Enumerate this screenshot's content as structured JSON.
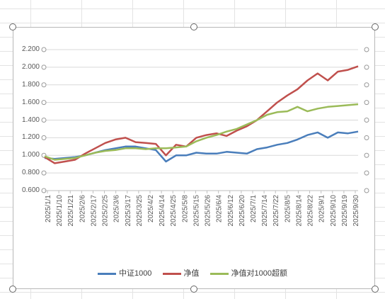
{
  "chart_data": {
    "type": "line",
    "y_ticks": [
      "2.200",
      "2.000",
      "1.800",
      "1.600",
      "1.400",
      "1.200",
      "1.000",
      "0.800",
      "0.600"
    ],
    "ylim": [
      0.6,
      2.2
    ],
    "x_tick_labels": [
      "2025/1/1",
      "2025/1/10",
      "2025/1/21",
      "2025/2/6",
      "2025/2/17",
      "2025/2/25",
      "2025/3/6",
      "2025/3/17",
      "2025/3/25",
      "2025/4/2",
      "2025/4/14",
      "2025/4/25",
      "2025/5/8",
      "2025/5/15",
      "2025/5/26",
      "2025/6/4",
      "2025/6/12",
      "2025/6/20",
      "2025/7/1",
      "2025/7/14",
      "2025/7/22",
      "2025/8/5",
      "2025/8/14",
      "2025/8/22",
      "2025/9/1",
      "2025/9/10",
      "2025/9/19",
      "2025/9/30"
    ],
    "grid": true,
    "legend_position": "bottom",
    "series": [
      {
        "name": "中证1000",
        "color": "#4a7ebb",
        "values": [
          0.97,
          0.96,
          0.97,
          0.98,
          1.0,
          1.03,
          1.06,
          1.08,
          1.1,
          1.1,
          1.08,
          1.06,
          0.93,
          1.0,
          1.0,
          1.03,
          1.02,
          1.02,
          1.04,
          1.03,
          1.02,
          1.07,
          1.09,
          1.12,
          1.14,
          1.18,
          1.23,
          1.26,
          1.2,
          1.26,
          1.25,
          1.27
        ]
      },
      {
        "name": "净值",
        "color": "#c0504d",
        "values": [
          0.98,
          0.91,
          0.93,
          0.95,
          1.02,
          1.08,
          1.14,
          1.18,
          1.2,
          1.15,
          1.14,
          1.13,
          1.0,
          1.12,
          1.1,
          1.2,
          1.23,
          1.25,
          1.22,
          1.28,
          1.33,
          1.4,
          1.5,
          1.6,
          1.68,
          1.75,
          1.85,
          1.93,
          1.85,
          1.95,
          1.97,
          2.01
        ]
      },
      {
        "name": "净值对1000超额",
        "color": "#9bbb59",
        "values": [
          0.99,
          0.95,
          0.96,
          0.97,
          1.0,
          1.03,
          1.05,
          1.06,
          1.08,
          1.08,
          1.07,
          1.08,
          1.08,
          1.09,
          1.1,
          1.16,
          1.2,
          1.23,
          1.27,
          1.3,
          1.35,
          1.4,
          1.46,
          1.49,
          1.5,
          1.55,
          1.5,
          1.53,
          1.55,
          1.56,
          1.57,
          1.58
        ]
      }
    ]
  }
}
